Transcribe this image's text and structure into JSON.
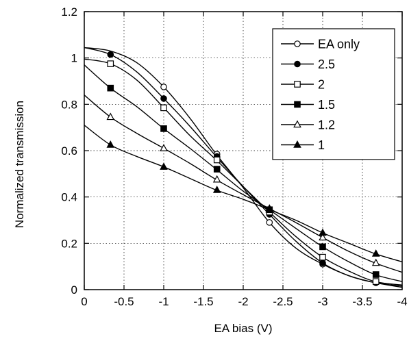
{
  "chart_data": {
    "type": "line",
    "title": "",
    "xlabel": "EA bias (V)",
    "ylabel": "Normalized transmission",
    "xlim": [
      0,
      -4
    ],
    "ylim": [
      0,
      1.2
    ],
    "xticks": [
      0,
      -0.5,
      -1,
      -1.5,
      -2,
      -2.5,
      -3,
      -3.5,
      -4
    ],
    "xtick_labels": [
      "0",
      "-0.5",
      "-1",
      "-1.5",
      "-2",
      "-2.5",
      "-3",
      "-3.5",
      "-4"
    ],
    "yticks": [
      0,
      0.2,
      0.4,
      0.6,
      0.8,
      1,
      1.2
    ],
    "ytick_labels": [
      "0",
      "0.2",
      "0.4",
      "0.6",
      "0.8",
      "1",
      "1.2"
    ],
    "grid": true,
    "legend_position": "top-right",
    "series": [
      {
        "name": "EA only",
        "marker": "open-circle",
        "curve": [
          [
            0,
            1.045
          ],
          [
            -0.33,
            1.03
          ],
          [
            -0.66,
            0.98
          ],
          [
            -1,
            0.875
          ],
          [
            -1.33,
            0.74
          ],
          [
            -1.66,
            0.585
          ],
          [
            -2,
            0.44
          ],
          [
            -2.33,
            0.29
          ],
          [
            -2.66,
            0.18
          ],
          [
            -3,
            0.11
          ],
          [
            -3.33,
            0.06
          ],
          [
            -3.66,
            0.03
          ],
          [
            -4,
            0.01
          ]
        ],
        "markers": [
          [
            -1,
            0.875
          ],
          [
            -1.67,
            0.585
          ],
          [
            -2.33,
            0.29
          ],
          [
            -3,
            0.11
          ],
          [
            -3.67,
            0.03
          ]
        ]
      },
      {
        "name": "2.5",
        "marker": "filled-circle",
        "curve": [
          [
            0,
            1.045
          ],
          [
            -0.33,
            1.015
          ],
          [
            -0.66,
            0.94
          ],
          [
            -1,
            0.825
          ],
          [
            -1.33,
            0.705
          ],
          [
            -1.66,
            0.575
          ],
          [
            -2,
            0.445
          ],
          [
            -2.33,
            0.325
          ],
          [
            -2.66,
            0.21
          ],
          [
            -3,
            0.115
          ],
          [
            -3.33,
            0.06
          ],
          [
            -3.66,
            0.03
          ],
          [
            -4,
            0.015
          ]
        ],
        "markers": [
          [
            -0.33,
            1.015
          ],
          [
            -1,
            0.825
          ],
          [
            -1.67,
            0.575
          ],
          [
            -2.33,
            0.325
          ],
          [
            -3,
            0.115
          ],
          [
            -3.67,
            0.03
          ]
        ]
      },
      {
        "name": "2",
        "marker": "open-square",
        "curve": [
          [
            0,
            0.995
          ],
          [
            -0.33,
            0.975
          ],
          [
            -0.66,
            0.905
          ],
          [
            -1,
            0.785
          ],
          [
            -1.33,
            0.665
          ],
          [
            -1.66,
            0.56
          ],
          [
            -2,
            0.445
          ],
          [
            -2.33,
            0.335
          ],
          [
            -2.66,
            0.23
          ],
          [
            -3,
            0.14
          ],
          [
            -3.33,
            0.08
          ],
          [
            -3.66,
            0.035
          ],
          [
            -4,
            0.02
          ]
        ],
        "markers": [
          [
            -0.33,
            0.975
          ],
          [
            -1,
            0.785
          ],
          [
            -1.67,
            0.56
          ],
          [
            -2.33,
            0.335
          ],
          [
            -3,
            0.14
          ],
          [
            -3.67,
            0.035
          ]
        ]
      },
      {
        "name": "1.5",
        "marker": "filled-square",
        "curve": [
          [
            0,
            0.97
          ],
          [
            -0.33,
            0.87
          ],
          [
            -0.66,
            0.79
          ],
          [
            -1,
            0.695
          ],
          [
            -1.33,
            0.61
          ],
          [
            -1.66,
            0.52
          ],
          [
            -2,
            0.425
          ],
          [
            -2.33,
            0.345
          ],
          [
            -2.66,
            0.265
          ],
          [
            -3,
            0.185
          ],
          [
            -3.33,
            0.12
          ],
          [
            -3.66,
            0.065
          ],
          [
            -4,
            0.035
          ]
        ],
        "markers": [
          [
            -0.33,
            0.87
          ],
          [
            -1,
            0.695
          ],
          [
            -1.67,
            0.52
          ],
          [
            -2.33,
            0.345
          ],
          [
            -3,
            0.185
          ],
          [
            -3.67,
            0.065
          ]
        ]
      },
      {
        "name": "1.2",
        "marker": "open-triangle",
        "curve": [
          [
            0,
            0.84
          ],
          [
            -0.33,
            0.745
          ],
          [
            -0.66,
            0.675
          ],
          [
            -1,
            0.61
          ],
          [
            -1.33,
            0.545
          ],
          [
            -1.66,
            0.475
          ],
          [
            -2,
            0.41
          ],
          [
            -2.33,
            0.35
          ],
          [
            -2.66,
            0.29
          ],
          [
            -3,
            0.225
          ],
          [
            -3.33,
            0.165
          ],
          [
            -3.66,
            0.115
          ],
          [
            -4,
            0.075
          ]
        ],
        "markers": [
          [
            -0.33,
            0.745
          ],
          [
            -1,
            0.61
          ],
          [
            -1.67,
            0.475
          ],
          [
            -2.33,
            0.35
          ],
          [
            -3,
            0.225
          ],
          [
            -3.67,
            0.115
          ]
        ]
      },
      {
        "name": "1",
        "marker": "filled-triangle",
        "curve": [
          [
            0,
            0.71
          ],
          [
            -0.33,
            0.625
          ],
          [
            -0.66,
            0.575
          ],
          [
            -1,
            0.53
          ],
          [
            -1.33,
            0.48
          ],
          [
            -1.66,
            0.43
          ],
          [
            -2,
            0.39
          ],
          [
            -2.33,
            0.345
          ],
          [
            -2.66,
            0.3
          ],
          [
            -3,
            0.245
          ],
          [
            -3.33,
            0.2
          ],
          [
            -3.66,
            0.155
          ],
          [
            -4,
            0.12
          ]
        ],
        "markers": [
          [
            -0.33,
            0.625
          ],
          [
            -1,
            0.53
          ],
          [
            -1.67,
            0.43
          ],
          [
            -2.33,
            0.345
          ],
          [
            -3,
            0.245
          ],
          [
            -3.67,
            0.155
          ]
        ]
      }
    ]
  }
}
